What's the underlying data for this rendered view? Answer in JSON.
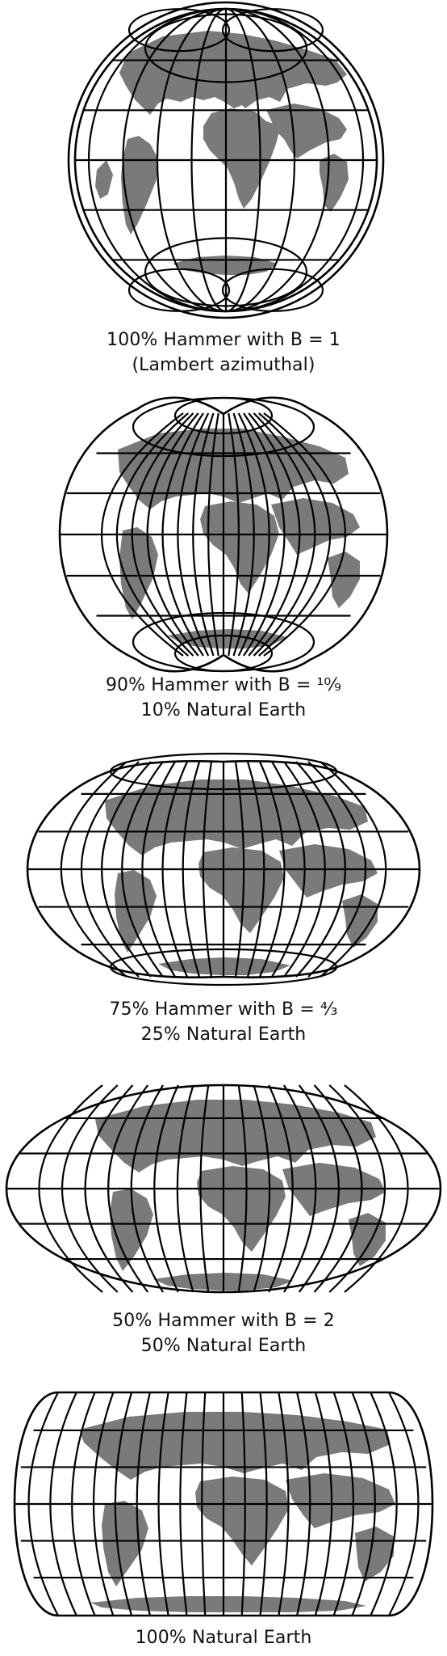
{
  "colors": {
    "outline": "#000000",
    "land": "#7a7a7a",
    "background": "#ffffff"
  },
  "panels": [
    {
      "id": "hammer-100",
      "caption_line1": "100% Hammer with B = 1",
      "caption_line2": "(Lambert azimuthal)",
      "shape": "circle-with-outer-ring"
    },
    {
      "id": "hammer-90",
      "caption_line1": "90% Hammer with B = ¹⁰⁄₉",
      "caption_line2": "10% Natural Earth",
      "shape": "two-lobed"
    },
    {
      "id": "hammer-75",
      "caption_line1": "75% Hammer with B = ⁴⁄₃",
      "caption_line2": "25% Natural Earth",
      "shape": "oval"
    },
    {
      "id": "hammer-50",
      "caption_line1": "50% Hammer with B = 2",
      "caption_line2": "50% Natural Earth",
      "shape": "ellipse"
    },
    {
      "id": "natural-earth-100",
      "caption_line1": "100% Natural Earth",
      "caption_line2": "",
      "shape": "rounded-rectangle"
    }
  ]
}
